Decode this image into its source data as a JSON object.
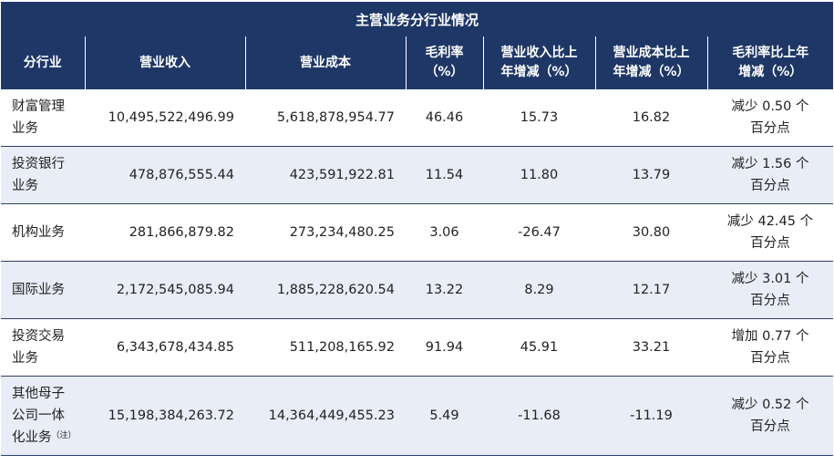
{
  "title": "主营业务分行业情况",
  "headers": {
    "segment": "分行业",
    "revenue": "营业收入",
    "cost": "营业成本",
    "margin_l1": "毛利率",
    "margin_l2": "（%）",
    "rev_chg_l1": "营业收入比上",
    "rev_chg_l2": "年增减（%）",
    "cost_chg_l1": "营业成本比上",
    "cost_chg_l2": "年增减（%）",
    "margin_chg_l1": "毛利率比上年",
    "margin_chg_l2": "增减（%）"
  },
  "rows": [
    {
      "seg_l1": "财富管理",
      "seg_l2": "业务",
      "seg_l3": "",
      "note": "",
      "revenue": "10,495,522,496.99",
      "cost": "5,618,878,954.77",
      "margin": "46.46",
      "rev_chg": "15.73",
      "cost_chg": "16.82",
      "margin_chg_l1": "减少 0.50 个",
      "margin_chg_l2": "百分点"
    },
    {
      "seg_l1": "投资银行",
      "seg_l2": "业务",
      "seg_l3": "",
      "note": "",
      "revenue": "478,876,555.44",
      "cost": "423,591,922.81",
      "margin": "11.54",
      "rev_chg": "11.80",
      "cost_chg": "13.79",
      "margin_chg_l1": "减少 1.56 个",
      "margin_chg_l2": "百分点"
    },
    {
      "seg_l1": "机构业务",
      "seg_l2": "",
      "seg_l3": "",
      "note": "",
      "revenue": "281,866,879.82",
      "cost": "273,234,480.25",
      "margin": "3.06",
      "rev_chg": "-26.47",
      "cost_chg": "30.80",
      "margin_chg_l1": "减少 42.45 个",
      "margin_chg_l2": "百分点"
    },
    {
      "seg_l1": "国际业务",
      "seg_l2": "",
      "seg_l3": "",
      "note": "",
      "revenue": "2,172,545,085.94",
      "cost": "1,885,228,620.54",
      "margin": "13.22",
      "rev_chg": "8.29",
      "cost_chg": "12.17",
      "margin_chg_l1": "减少 3.01 个",
      "margin_chg_l2": "百分点"
    },
    {
      "seg_l1": "投资交易",
      "seg_l2": "业务",
      "seg_l3": "",
      "note": "",
      "revenue": "6,343,678,434.85",
      "cost": "511,208,165.92",
      "margin": "91.94",
      "rev_chg": "45.91",
      "cost_chg": "33.21",
      "margin_chg_l1": "增加 0.77 个",
      "margin_chg_l2": "百分点"
    },
    {
      "seg_l1": "其他母子",
      "seg_l2": "公司一体",
      "seg_l3": "化业务",
      "note": "（注）",
      "revenue": "15,198,384,263.72",
      "cost": "14,364,449,455.23",
      "margin": "5.49",
      "rev_chg": "-11.68",
      "cost_chg": "-11.19",
      "margin_chg_l1": "减少 0.52 个",
      "margin_chg_l2": "百分点"
    }
  ]
}
